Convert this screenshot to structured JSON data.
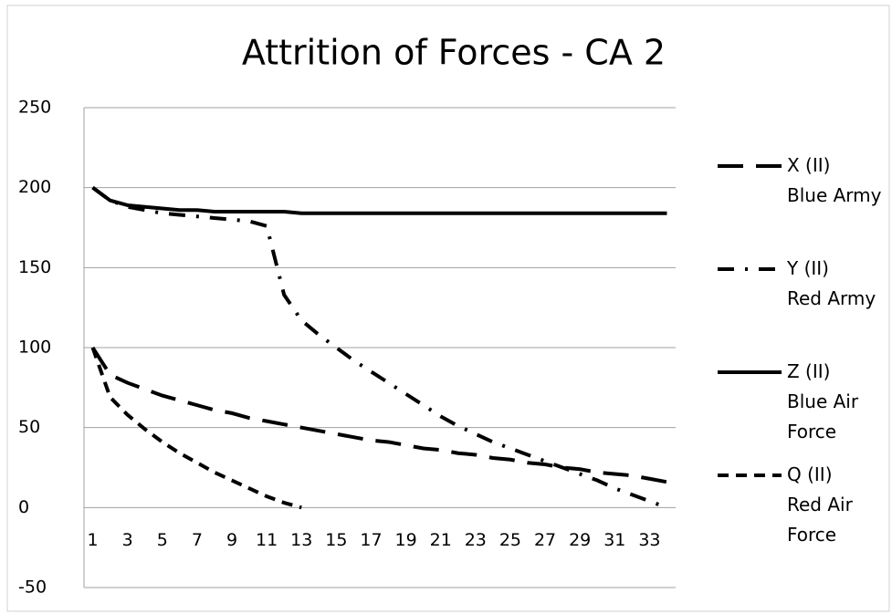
{
  "chart_data": {
    "type": "line",
    "title": "Attrition of Forces - CA 2",
    "categories": [
      1,
      null,
      3,
      null,
      5,
      null,
      7,
      null,
      9,
      null,
      11,
      null,
      13,
      null,
      15,
      null,
      17,
      null,
      19,
      null,
      21,
      null,
      23,
      null,
      25,
      null,
      27,
      null,
      29,
      null,
      31,
      null,
      33,
      null
    ],
    "series": [
      {
        "name": "X (II) Blue Army",
        "color": "#000000",
        "dash": "long-dash",
        "values": [
          100,
          83,
          78,
          74,
          70,
          67,
          64,
          61,
          59,
          56,
          54,
          52,
          50,
          48,
          46,
          44,
          42,
          41,
          39,
          37,
          36,
          34,
          33,
          31,
          30,
          28,
          27,
          25,
          24,
          22,
          21,
          20,
          18,
          16
        ]
      },
      {
        "name": "Y (II) Red Army",
        "color": "#000000",
        "dash": "dash-dot",
        "values": [
          200,
          192,
          188,
          186,
          184,
          183,
          182,
          181,
          180,
          179,
          176,
          133,
          117,
          108,
          100,
          92,
          85,
          78,
          71,
          64,
          57,
          51,
          46,
          41,
          37,
          33,
          29,
          25,
          21,
          17,
          12,
          8,
          4,
          0
        ]
      },
      {
        "name": "Z (II) Blue Air Force",
        "color": "#000000",
        "dash": "solid",
        "values": [
          200,
          192,
          189,
          188,
          187,
          186,
          186,
          185,
          185,
          185,
          185,
          185,
          184,
          184,
          184,
          184,
          184,
          184,
          184,
          184,
          184,
          184,
          184,
          184,
          184,
          184,
          184,
          184,
          184,
          184,
          184,
          184,
          184,
          184
        ]
      },
      {
        "name": "Q (II) Red Air Force",
        "color": "#000000",
        "dash": "short-dash",
        "values": [
          100,
          69,
          58,
          49,
          41,
          34,
          28,
          22,
          17,
          12,
          7,
          3,
          0,
          null,
          null,
          null,
          null,
          null,
          null,
          null,
          null,
          null,
          null,
          null,
          null,
          null,
          null,
          null,
          null,
          null,
          null,
          null,
          null,
          null
        ]
      }
    ],
    "ylim": [
      -50,
      250
    ],
    "yticks": [
      -50,
      0,
      50,
      100,
      150,
      200,
      250
    ],
    "grid": true,
    "legend": "right"
  }
}
